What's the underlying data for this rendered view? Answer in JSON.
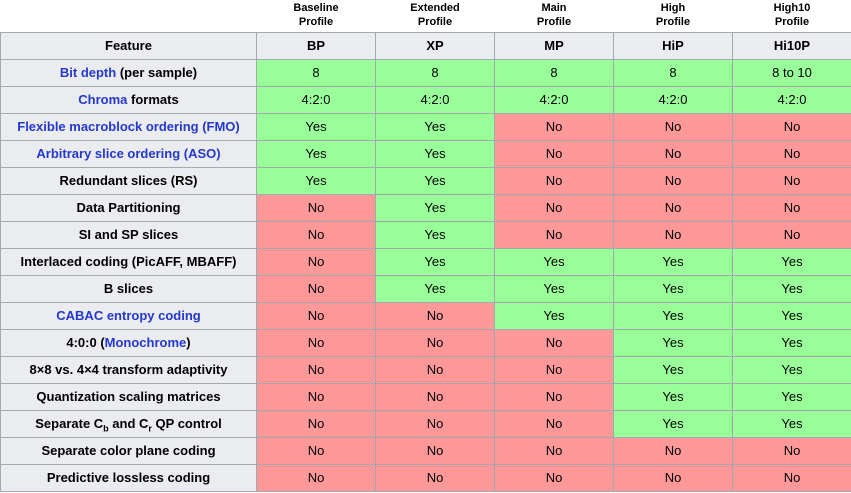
{
  "colors": {
    "yes_bg": "#99ff99",
    "no_bg": "#ff9999",
    "header_bg": "#eaecf0",
    "border": "#a2a9b1",
    "link": "#2538cd",
    "page_bg": "#ffffff",
    "text": "#000000"
  },
  "table": {
    "feature_header": "Feature",
    "profiles": [
      {
        "caption_lines": [
          "Baseline",
          "Profile"
        ],
        "abbr": "BP"
      },
      {
        "caption_lines": [
          "Extended",
          "Profile"
        ],
        "abbr": "XP"
      },
      {
        "caption_lines": [
          "Main",
          "Profile"
        ],
        "abbr": "MP"
      },
      {
        "caption_lines": [
          "High",
          "Profile"
        ],
        "abbr": "HiP"
      },
      {
        "caption_lines": [
          "High10",
          "Profile"
        ],
        "abbr": "Hi10P"
      }
    ],
    "rows": [
      {
        "feature": [
          {
            "link": "Bit depth"
          },
          {
            "text": " (per sample)"
          }
        ],
        "values": [
          {
            "v": "8",
            "c": "yes"
          },
          {
            "v": "8",
            "c": "yes"
          },
          {
            "v": "8",
            "c": "yes"
          },
          {
            "v": "8",
            "c": "yes"
          },
          {
            "v": "8 to 10",
            "c": "yes"
          }
        ]
      },
      {
        "feature": [
          {
            "link": "Chroma"
          },
          {
            "text": " formats"
          }
        ],
        "values": [
          {
            "v": "4:2:0",
            "c": "yes"
          },
          {
            "v": "4:2:0",
            "c": "yes"
          },
          {
            "v": "4:2:0",
            "c": "yes"
          },
          {
            "v": "4:2:0",
            "c": "yes"
          },
          {
            "v": "4:2:0",
            "c": "yes"
          }
        ]
      },
      {
        "feature": [
          {
            "link": "Flexible macroblock ordering (FMO)"
          }
        ],
        "values": [
          {
            "v": "Yes",
            "c": "yes"
          },
          {
            "v": "Yes",
            "c": "yes"
          },
          {
            "v": "No",
            "c": "no"
          },
          {
            "v": "No",
            "c": "no"
          },
          {
            "v": "No",
            "c": "no"
          }
        ]
      },
      {
        "feature": [
          {
            "link": "Arbitrary slice ordering (ASO)"
          }
        ],
        "values": [
          {
            "v": "Yes",
            "c": "yes"
          },
          {
            "v": "Yes",
            "c": "yes"
          },
          {
            "v": "No",
            "c": "no"
          },
          {
            "v": "No",
            "c": "no"
          },
          {
            "v": "No",
            "c": "no"
          }
        ]
      },
      {
        "feature": [
          {
            "text": "Redundant slices (RS)"
          }
        ],
        "values": [
          {
            "v": "Yes",
            "c": "yes"
          },
          {
            "v": "Yes",
            "c": "yes"
          },
          {
            "v": "No",
            "c": "no"
          },
          {
            "v": "No",
            "c": "no"
          },
          {
            "v": "No",
            "c": "no"
          }
        ]
      },
      {
        "feature": [
          {
            "text": "Data Partitioning"
          }
        ],
        "values": [
          {
            "v": "No",
            "c": "no"
          },
          {
            "v": "Yes",
            "c": "yes"
          },
          {
            "v": "No",
            "c": "no"
          },
          {
            "v": "No",
            "c": "no"
          },
          {
            "v": "No",
            "c": "no"
          }
        ]
      },
      {
        "feature": [
          {
            "text": "SI and SP slices"
          }
        ],
        "values": [
          {
            "v": "No",
            "c": "no"
          },
          {
            "v": "Yes",
            "c": "yes"
          },
          {
            "v": "No",
            "c": "no"
          },
          {
            "v": "No",
            "c": "no"
          },
          {
            "v": "No",
            "c": "no"
          }
        ]
      },
      {
        "feature": [
          {
            "text": "Interlaced coding (PicAFF, MBAFF)"
          }
        ],
        "values": [
          {
            "v": "No",
            "c": "no"
          },
          {
            "v": "Yes",
            "c": "yes"
          },
          {
            "v": "Yes",
            "c": "yes"
          },
          {
            "v": "Yes",
            "c": "yes"
          },
          {
            "v": "Yes",
            "c": "yes"
          }
        ]
      },
      {
        "feature": [
          {
            "text": "B slices"
          }
        ],
        "values": [
          {
            "v": "No",
            "c": "no"
          },
          {
            "v": "Yes",
            "c": "yes"
          },
          {
            "v": "Yes",
            "c": "yes"
          },
          {
            "v": "Yes",
            "c": "yes"
          },
          {
            "v": "Yes",
            "c": "yes"
          }
        ]
      },
      {
        "feature": [
          {
            "link": "CABAC entropy coding"
          }
        ],
        "values": [
          {
            "v": "No",
            "c": "no"
          },
          {
            "v": "No",
            "c": "no"
          },
          {
            "v": "Yes",
            "c": "yes"
          },
          {
            "v": "Yes",
            "c": "yes"
          },
          {
            "v": "Yes",
            "c": "yes"
          }
        ]
      },
      {
        "feature": [
          {
            "text": "4:0:0 ("
          },
          {
            "link": "Monochrome"
          },
          {
            "text": ")"
          }
        ],
        "values": [
          {
            "v": "No",
            "c": "no"
          },
          {
            "v": "No",
            "c": "no"
          },
          {
            "v": "No",
            "c": "no"
          },
          {
            "v": "Yes",
            "c": "yes"
          },
          {
            "v": "Yes",
            "c": "yes"
          }
        ]
      },
      {
        "feature": [
          {
            "text": "8×8 vs. 4×4 transform adaptivity"
          }
        ],
        "values": [
          {
            "v": "No",
            "c": "no"
          },
          {
            "v": "No",
            "c": "no"
          },
          {
            "v": "No",
            "c": "no"
          },
          {
            "v": "Yes",
            "c": "yes"
          },
          {
            "v": "Yes",
            "c": "yes"
          }
        ]
      },
      {
        "feature": [
          {
            "text": "Quantization scaling matrices"
          }
        ],
        "values": [
          {
            "v": "No",
            "c": "no"
          },
          {
            "v": "No",
            "c": "no"
          },
          {
            "v": "No",
            "c": "no"
          },
          {
            "v": "Yes",
            "c": "yes"
          },
          {
            "v": "Yes",
            "c": "yes"
          }
        ]
      },
      {
        "feature": [
          {
            "text": "Separate C"
          },
          {
            "sub": "b"
          },
          {
            "text": " and C"
          },
          {
            "sub": "r"
          },
          {
            "text": " QP control"
          }
        ],
        "values": [
          {
            "v": "No",
            "c": "no"
          },
          {
            "v": "No",
            "c": "no"
          },
          {
            "v": "No",
            "c": "no"
          },
          {
            "v": "Yes",
            "c": "yes"
          },
          {
            "v": "Yes",
            "c": "yes"
          }
        ]
      },
      {
        "feature": [
          {
            "text": "Separate color plane coding"
          }
        ],
        "values": [
          {
            "v": "No",
            "c": "no"
          },
          {
            "v": "No",
            "c": "no"
          },
          {
            "v": "No",
            "c": "no"
          },
          {
            "v": "No",
            "c": "no"
          },
          {
            "v": "No",
            "c": "no"
          }
        ]
      },
      {
        "feature": [
          {
            "text": "Predictive lossless coding"
          }
        ],
        "values": [
          {
            "v": "No",
            "c": "no"
          },
          {
            "v": "No",
            "c": "no"
          },
          {
            "v": "No",
            "c": "no"
          },
          {
            "v": "No",
            "c": "no"
          },
          {
            "v": "No",
            "c": "no"
          }
        ]
      }
    ]
  }
}
